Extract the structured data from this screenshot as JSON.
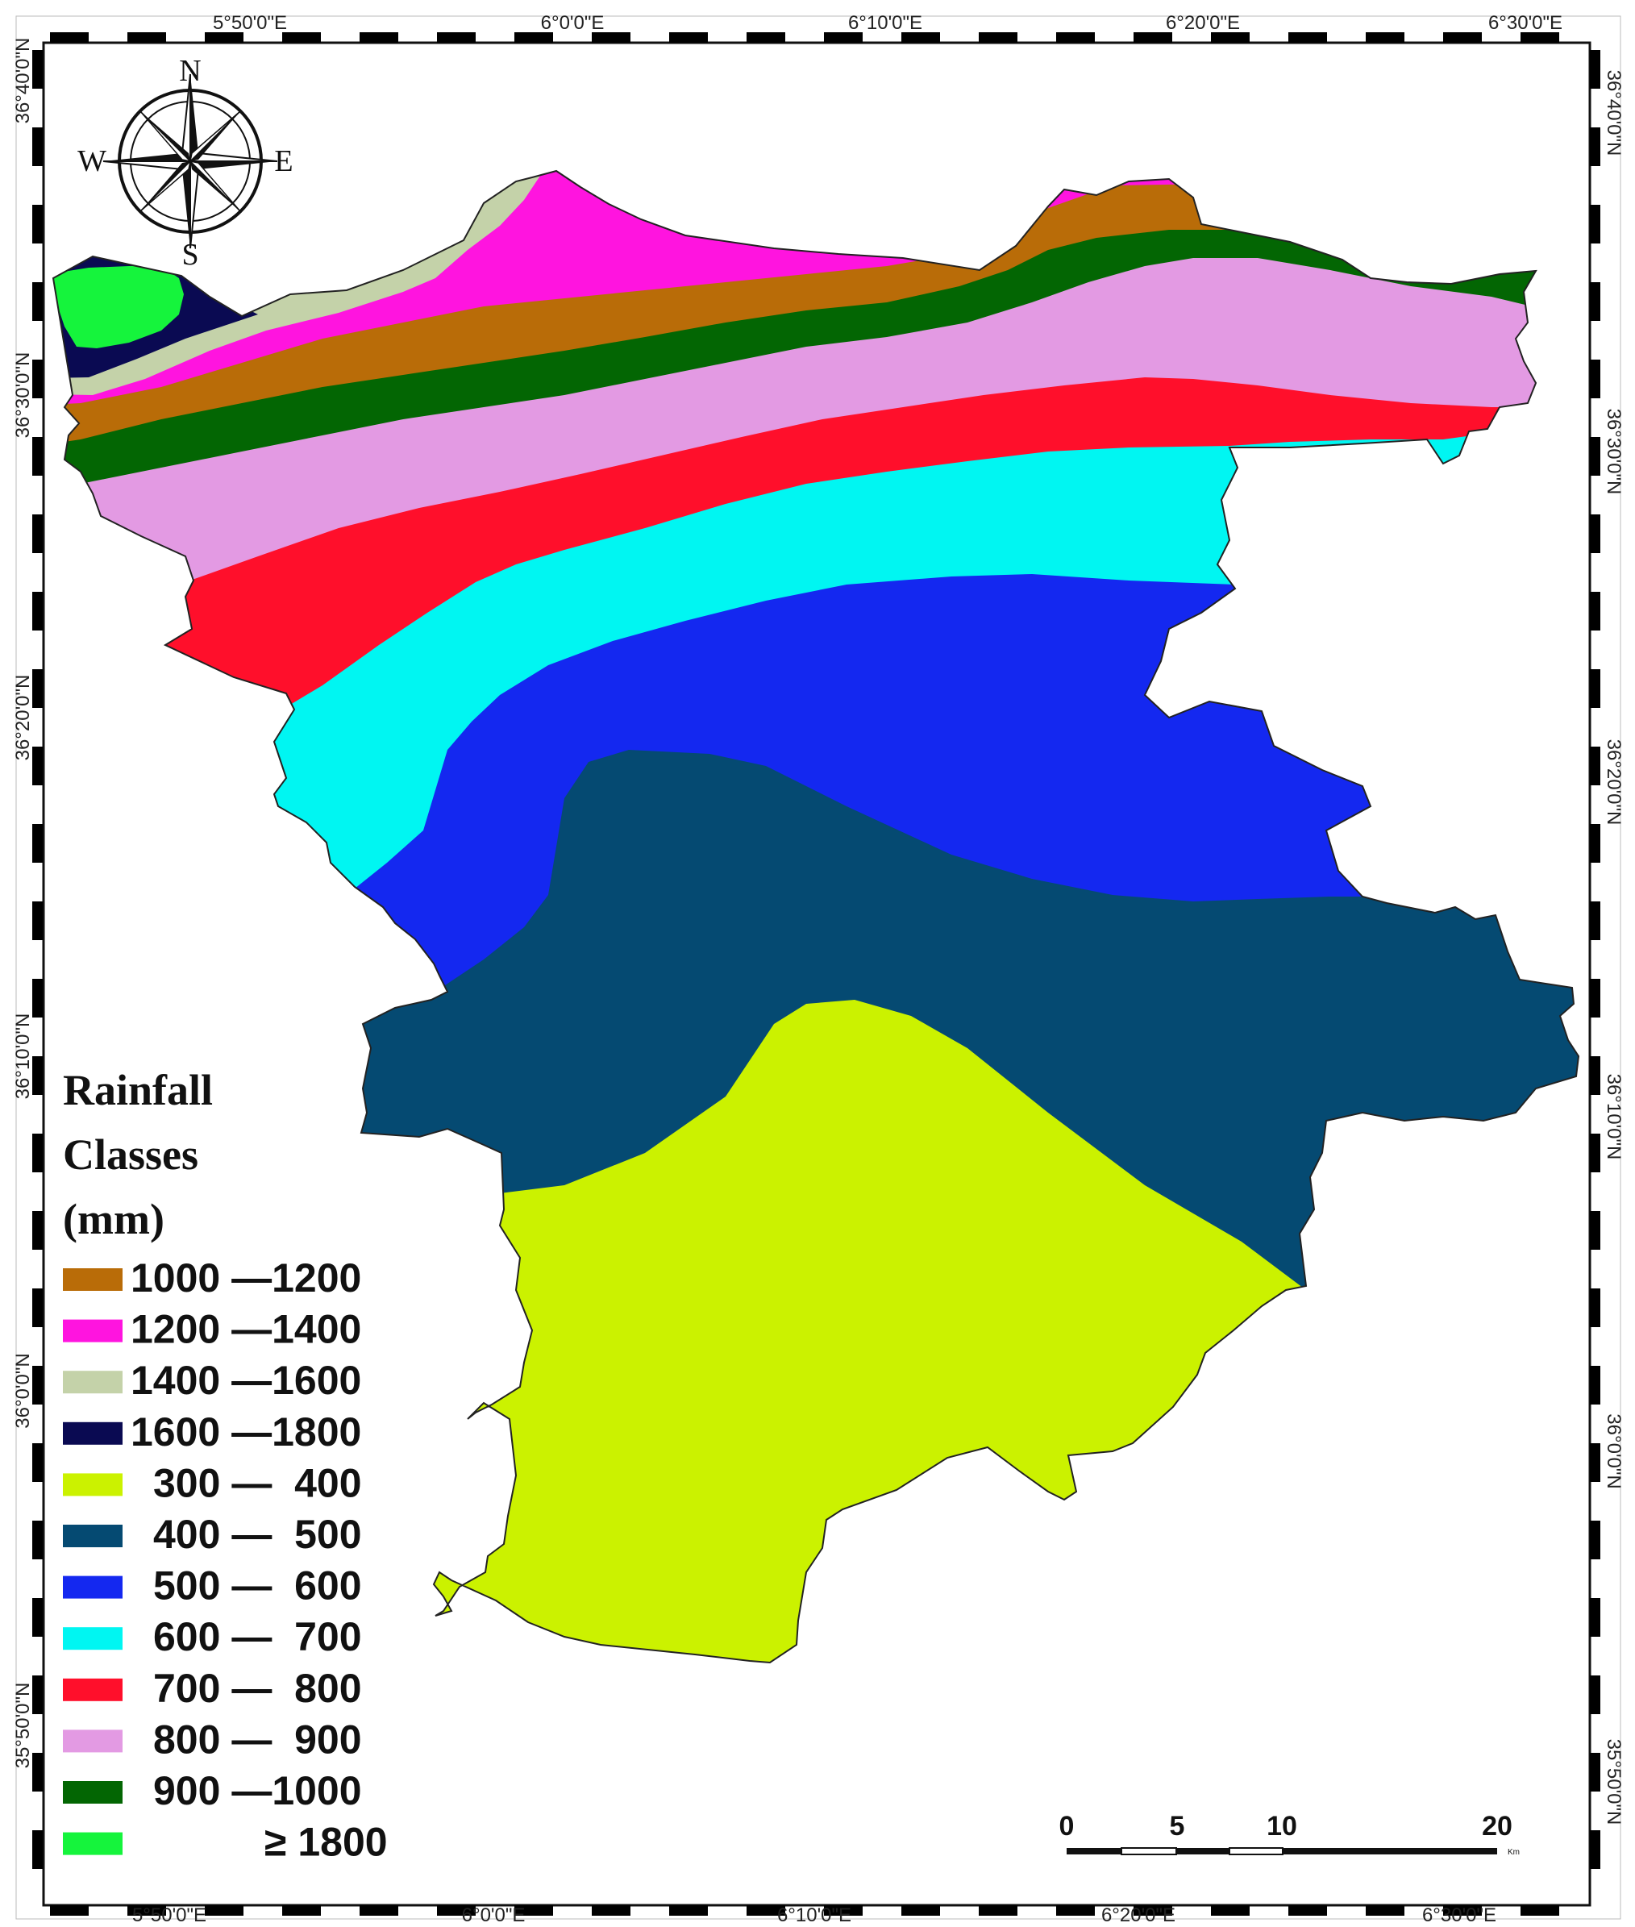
{
  "map": {
    "longitude_labels": [
      "5°50'0\"E",
      "6°0'0\"E",
      "6°10'0\"E",
      "6°20'0\"E",
      "6°30'0\"E"
    ],
    "latitude_labels": [
      "36°40'0\"N",
      "36°30'0\"N",
      "36°20'0\"N",
      "36°10'0\"N",
      "36°0'0\"N",
      "35°50'0\"N"
    ],
    "compass": {
      "north": "N",
      "south": "S",
      "east": "E",
      "west": "W"
    },
    "legend": {
      "title_lines": [
        "Rainfall",
        "Classes",
        "(mm)"
      ],
      "items": [
        {
          "label": "1000 —1200",
          "color": "#b96c08"
        },
        {
          "label": "1200 —1400",
          "color": "#ff14df"
        },
        {
          "label": "1400 —1600",
          "color": "#c4d2a9"
        },
        {
          "label": "1600 —1800",
          "color": "#0a0a52"
        },
        {
          "label": "300 —  400",
          "color": "#cbf200"
        },
        {
          "label": "400 —  500",
          "color": "#054a72"
        },
        {
          "label": "500 —  600",
          "color": "#1428f0"
        },
        {
          "label": "600 —  700",
          "color": "#00f6f2"
        },
        {
          "label": "700 —  800",
          "color": "#ff0f2b"
        },
        {
          "label": "800 —  900",
          "color": "#e39ae3"
        },
        {
          "label": "900 —1000",
          "color": "#036603"
        },
        {
          "label": "≥ 1800",
          "color": "#15f43c"
        }
      ]
    },
    "scale_bar": {
      "ticks": [
        "0",
        "5",
        "10",
        "20"
      ],
      "unit": "Km"
    }
  }
}
